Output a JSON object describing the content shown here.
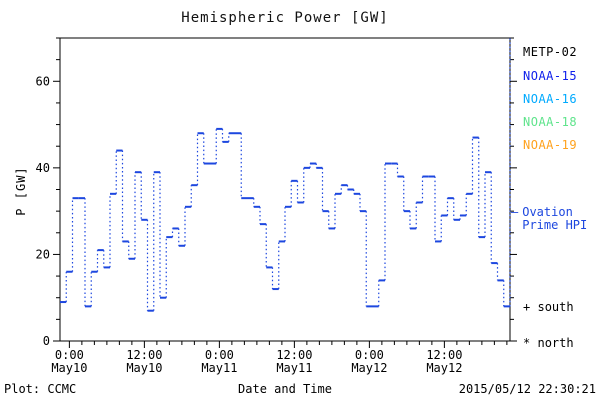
{
  "title": "Hemispheric Power [GW]",
  "y_axis": {
    "label": "P [GW]",
    "tick_labels": [
      0,
      20,
      40,
      60
    ]
  },
  "x_axis": {
    "label": "Date and Time",
    "majors": [
      {
        "time": "0:00",
        "date": "May10"
      },
      {
        "time": "12:00",
        "date": "May10"
      },
      {
        "time": "0:00",
        "date": "May11"
      },
      {
        "time": "12:00",
        "date": "May11"
      },
      {
        "time": "0:00",
        "date": "May12"
      },
      {
        "time": "12:00",
        "date": "May12"
      }
    ]
  },
  "legend": {
    "satellites": [
      {
        "label": "METP-02",
        "color": "#000000"
      },
      {
        "label": "NOAA-15",
        "color": "#1021eb"
      },
      {
        "label": "NOAA-16",
        "color": "#00aaff"
      },
      {
        "label": "NOAA-18",
        "color": "#5fe48c"
      },
      {
        "label": "NOAA-19",
        "color": "#ffa21e"
      }
    ],
    "line_entry": {
      "sample": "—",
      "line1": "Ovation",
      "line2": "Prime HPI",
      "color": "#1d47df"
    },
    "markers": [
      {
        "symbol": "+",
        "label": "south"
      },
      {
        "symbol": "*",
        "label": "north"
      }
    ]
  },
  "footer": {
    "plot_credit": "Plot: CCMC",
    "timestamp": "2015/05/12 22:30:21"
  },
  "chart_data": {
    "type": "line",
    "style": "step-post with dotted vertical connectors",
    "title": "Hemispheric Power [GW]",
    "xlabel": "Date and Time",
    "ylabel": "P [GW]",
    "ylim": [
      0,
      70
    ],
    "y_major_ticks": [
      0,
      20,
      40,
      60
    ],
    "y_minor_step": 5,
    "x_start": "2015-05-09 22:30",
    "x_end": "2015-05-12 22:30",
    "x_span_hours": 72,
    "x_step_hours": 1,
    "x_major_tick_hours": 12,
    "x_minor_tick_hours": 2,
    "x_tick_labels": [
      "0:00 May10",
      "12:00 May10",
      "0:00 May11",
      "12:00 May11",
      "0:00 May12",
      "12:00 May12"
    ],
    "grid": false,
    "legend_position": "right",
    "end_of_data_marker_line": true,
    "line_color": "#1d47df",
    "series": [
      {
        "name": "Ovation Prime HPI",
        "values": [
          9,
          16,
          33,
          33,
          8,
          16,
          21,
          17,
          34,
          44,
          23,
          19,
          39,
          28,
          7,
          39,
          10,
          24,
          26,
          22,
          31,
          36,
          48,
          41,
          41,
          49,
          46,
          48,
          48,
          33,
          33,
          31,
          27,
          17,
          12,
          23,
          31,
          37,
          32,
          40,
          41,
          40,
          30,
          26,
          34,
          36,
          35,
          34,
          30,
          8,
          8,
          14,
          41,
          41,
          38,
          30,
          26,
          32,
          38,
          38,
          23,
          29,
          33,
          28,
          29,
          34,
          47,
          24,
          39,
          18,
          14,
          8,
          8
        ]
      }
    ]
  }
}
